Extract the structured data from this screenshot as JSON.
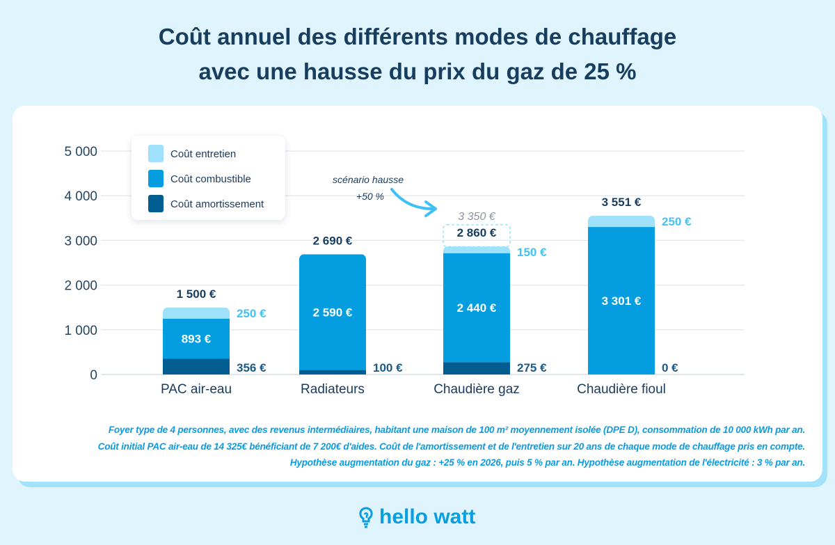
{
  "title_line1": "Coût annuel des différents modes de chauffage",
  "title_line2": "avec une hausse du prix du gaz de 25 %",
  "colors": {
    "entretien": "#9fe0fb",
    "combustible": "#049ddf",
    "amortissement": "#025d91",
    "title": "#173d5f",
    "background": "#dff4fd"
  },
  "chart_data": {
    "type": "bar",
    "stacked": true,
    "categories": [
      "PAC air-eau",
      "Radiateurs",
      "Chaudière gaz",
      "Chaudière fioul"
    ],
    "series": [
      {
        "name": "Coût amortissement",
        "values": [
          356,
          100,
          275,
          0
        ],
        "labels": [
          "356 €",
          "100 €",
          "275 €",
          "0 €"
        ]
      },
      {
        "name": "Coût combustible",
        "values": [
          893,
          2590,
          2440,
          3301
        ],
        "labels": [
          "893 €",
          "2 590 €",
          "2 440 €",
          "3 301 €"
        ]
      },
      {
        "name": "Coût entretien",
        "values": [
          250,
          0,
          150,
          250
        ],
        "labels": [
          "250 €",
          "",
          "150 €",
          "250 €"
        ]
      }
    ],
    "totals": [
      "1 500 €",
      "2 690 €",
      "2 860 €",
      "3 551 €"
    ],
    "yticks": [
      0,
      1000,
      2000,
      3000,
      4000,
      5000
    ],
    "ytick_labels": [
      "0",
      "1 000",
      "2 000",
      "3 000",
      "4 000",
      "5 000"
    ],
    "ylim": [
      0,
      5000
    ],
    "grid": true,
    "legend": {
      "placement": "top-left",
      "items": [
        "Coût entretien",
        "Coût combustible",
        "Coût amortissement"
      ]
    },
    "annotation": {
      "category": "Chaudière gaz",
      "text_line1": "scénario hausse",
      "text_line2": "+50 %",
      "value": 3350,
      "label": "3 350 €"
    }
  },
  "notes": [
    "Foyer type de 4 personnes, avec des revenus intermédiaires, habitant une maison de 100 m² moyennement isolée (DPE D), consommation de 10 000 kWh par an.",
    "Coût initial PAC air-eau de 14 325€ bénéficiant de 7 200€ d'aides. Coût de l'amortissement et de l'entretien sur 20 ans de chaque mode de chauffage pris en compte.",
    "Hypothèse augmentation du gaz : +25 % en 2026, puis 5 % par an. Hypothèse augmentation de l'électricité : 3 % par an."
  ],
  "logo": "hello watt"
}
